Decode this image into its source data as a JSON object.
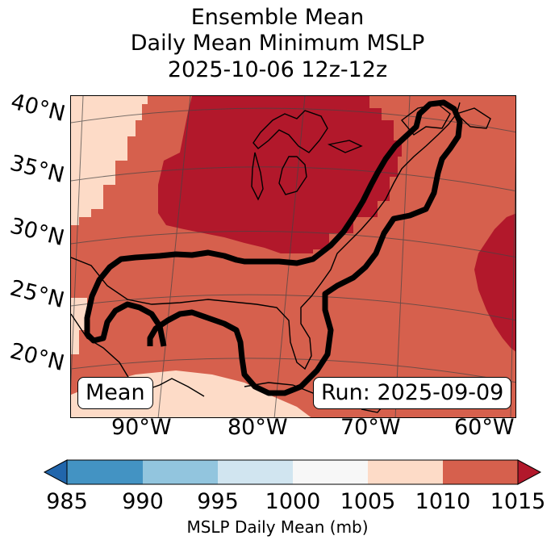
{
  "title": {
    "line1": "Ensemble Mean",
    "line2": "Daily Mean Minimum MSLP",
    "line3": "2025-10-06 12z-12z"
  },
  "map": {
    "lat_labels": [
      "40°N",
      "35°N",
      "30°N",
      "25°N",
      "20°N"
    ],
    "lon_labels": [
      "90°W",
      "80°W",
      "70°W",
      "60°W"
    ],
    "legend_left": "Mean",
    "legend_right": "Run: 2025-09-09",
    "fill_levels_mb": [
      {
        "range": "1005-1010",
        "color": "#fddbc7"
      },
      {
        "range": "1010-1015",
        "color": "#d6604d"
      },
      {
        "range": ">1015",
        "color": "#b2182b"
      }
    ]
  },
  "colorbar": {
    "ticks": [
      "985",
      "990",
      "995",
      "1000",
      "1005",
      "1010",
      "1015"
    ],
    "colors": [
      "#2166ac",
      "#4393c3",
      "#92c5de",
      "#d1e5f0",
      "#f7f7f7",
      "#fddbc7",
      "#d6604d",
      "#b2182b"
    ],
    "label": "MSLP Daily Mean (mb)"
  }
}
